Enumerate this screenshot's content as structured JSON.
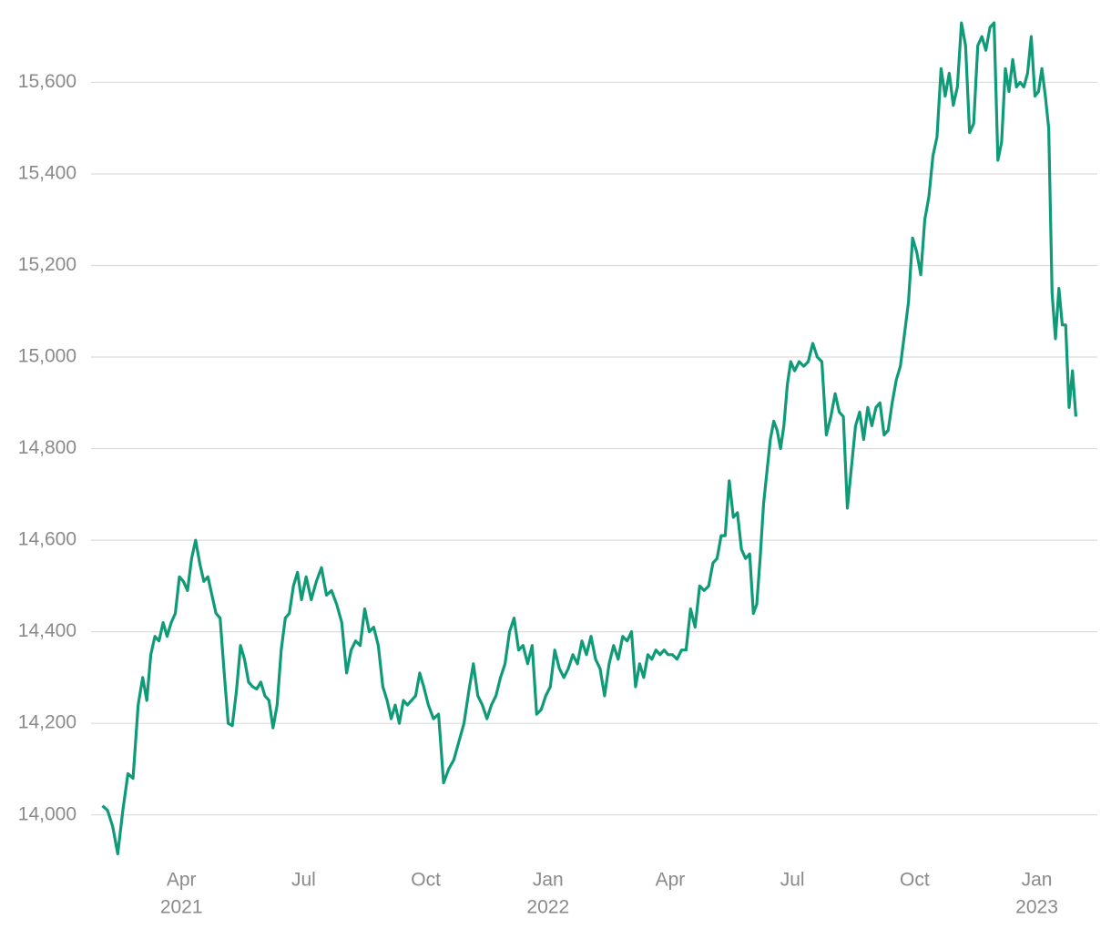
{
  "chart_data": {
    "type": "line",
    "x": [
      "2021-02",
      "2021-02",
      "2021-02",
      "2021-02",
      "2021-02",
      "2021-02",
      "2021-02",
      "2021-02",
      "2021-03",
      "2021-03",
      "2021-03",
      "2021-03",
      "2021-03",
      "2021-03",
      "2021-03",
      "2021-03",
      "2021-03",
      "2021-03",
      "2021-04",
      "2021-04",
      "2021-04",
      "2021-04",
      "2021-04",
      "2021-04",
      "2021-04",
      "2021-04",
      "2021-04",
      "2021-04",
      "2021-05",
      "2021-05",
      "2021-05",
      "2021-05",
      "2021-05",
      "2021-05",
      "2021-05",
      "2021-05",
      "2021-05",
      "2021-05",
      "2021-06",
      "2021-06",
      "2021-06",
      "2021-06",
      "2021-06",
      "2021-06",
      "2021-06",
      "2021-06",
      "2021-06",
      "2021-06",
      "2021-07",
      "2021-07",
      "2021-07",
      "2021-07",
      "2021-07",
      "2021-07",
      "2021-07",
      "2021-07",
      "2021-08",
      "2021-08",
      "2021-08",
      "2021-08",
      "2021-08",
      "2021-08",
      "2021-08",
      "2021-08",
      "2021-08",
      "2021-09",
      "2021-09",
      "2021-09",
      "2021-09",
      "2021-09",
      "2021-09",
      "2021-09",
      "2021-09",
      "2021-09",
      "2021-09",
      "2021-10",
      "2021-10",
      "2021-10",
      "2021-10",
      "2021-10",
      "2021-10",
      "2021-10",
      "2021-10",
      "2021-11",
      "2021-11",
      "2021-11",
      "2021-11",
      "2021-11",
      "2021-11",
      "2021-11",
      "2021-11",
      "2021-11",
      "2021-12",
      "2021-12",
      "2021-12",
      "2021-12",
      "2021-12",
      "2021-12",
      "2021-12",
      "2021-12",
      "2021-12",
      "2022-01",
      "2022-01",
      "2022-01",
      "2022-01",
      "2022-01",
      "2022-01",
      "2022-01",
      "2022-01",
      "2022-01",
      "2022-02",
      "2022-02",
      "2022-02",
      "2022-02",
      "2022-02",
      "2022-02",
      "2022-02",
      "2022-02",
      "2022-02",
      "2022-03",
      "2022-03",
      "2022-03",
      "2022-03",
      "2022-03",
      "2022-03",
      "2022-03",
      "2022-03",
      "2022-03",
      "2022-03",
      "2022-04",
      "2022-04",
      "2022-04",
      "2022-04",
      "2022-04",
      "2022-04",
      "2022-04",
      "2022-04",
      "2022-04",
      "2022-05",
      "2022-05",
      "2022-05",
      "2022-05",
      "2022-05",
      "2022-05",
      "2022-05",
      "2022-05",
      "2022-05",
      "2022-05",
      "2022-06",
      "2022-06",
      "2022-06",
      "2022-06",
      "2022-06",
      "2022-06",
      "2022-06",
      "2022-06",
      "2022-06",
      "2022-06",
      "2022-06",
      "2022-06",
      "2022-07",
      "2022-07",
      "2022-07",
      "2022-07",
      "2022-07",
      "2022-07",
      "2022-07",
      "2022-07",
      "2022-07",
      "2022-08",
      "2022-08",
      "2022-08",
      "2022-08",
      "2022-08",
      "2022-08",
      "2022-08",
      "2022-08",
      "2022-08",
      "2022-08",
      "2022-09",
      "2022-09",
      "2022-09",
      "2022-09",
      "2022-09",
      "2022-09",
      "2022-09",
      "2022-09",
      "2022-09",
      "2022-09",
      "2022-10",
      "2022-10",
      "2022-10",
      "2022-10",
      "2022-10",
      "2022-10",
      "2022-10",
      "2022-10",
      "2022-10",
      "2022-10",
      "2022-11",
      "2022-11",
      "2022-11",
      "2022-11",
      "2022-11",
      "2022-11",
      "2022-11",
      "2022-11",
      "2022-11",
      "2022-11",
      "2022-12",
      "2022-12",
      "2022-12",
      "2022-12",
      "2022-12",
      "2022-12",
      "2022-12",
      "2022-12",
      "2022-12",
      "2022-12",
      "2022-12",
      "2023-01",
      "2023-01",
      "2023-01",
      "2023-01",
      "2023-01",
      "2023-01",
      "2023-01",
      "2023-01",
      "2023-01",
      "2023-01",
      "2023-01",
      "2023-01"
    ],
    "series": [
      {
        "color": "#0f9a78",
        "values": [
          14020,
          14010,
          13975,
          13915,
          14010,
          14090,
          14080,
          14240,
          14300,
          14250,
          14350,
          14390,
          14380,
          14420,
          14390,
          14420,
          14440,
          14520,
          14510,
          14490,
          14560,
          14600,
          14550,
          14510,
          14520,
          14480,
          14440,
          14430,
          14310,
          14200,
          14195,
          14270,
          14370,
          14340,
          14290,
          14280,
          14275,
          14290,
          14260,
          14250,
          14190,
          14240,
          14360,
          14430,
          14440,
          14500,
          14530,
          14470,
          14520,
          14470,
          14510,
          14540,
          14480,
          14490,
          14460,
          14420,
          14310,
          14360,
          14380,
          14370,
          14450,
          14400,
          14410,
          14370,
          14280,
          14250,
          14210,
          14240,
          14200,
          14250,
          14240,
          14250,
          14260,
          14310,
          14280,
          14240,
          14210,
          14220,
          14070,
          14100,
          14120,
          14160,
          14200,
          14270,
          14330,
          14260,
          14240,
          14210,
          14240,
          14260,
          14300,
          14330,
          14400,
          14430,
          14360,
          14370,
          14330,
          14370,
          14220,
          14230,
          14260,
          14280,
          14360,
          14320,
          14300,
          14320,
          14350,
          14330,
          14380,
          14350,
          14390,
          14340,
          14320,
          14260,
          14330,
          14370,
          14340,
          14390,
          14380,
          14400,
          14280,
          14330,
          14300,
          14350,
          14340,
          14360,
          14350,
          14360,
          14350,
          14350,
          14340,
          14360,
          14360,
          14450,
          14410,
          14500,
          14490,
          14500,
          14550,
          14560,
          14610,
          14610,
          14730,
          14650,
          14660,
          14580,
          14560,
          14570,
          14440,
          14460,
          14560,
          14680,
          14750,
          14820,
          14860,
          14840,
          14800,
          14850,
          14940,
          14990,
          14970,
          14990,
          14980,
          14990,
          15030,
          15000,
          14990,
          14830,
          14870,
          14920,
          14880,
          14870,
          14670,
          14760,
          14850,
          14880,
          14820,
          14890,
          14850,
          14890,
          14900,
          14830,
          14840,
          14900,
          14950,
          14980,
          15050,
          15120,
          15260,
          15230,
          15180,
          15300,
          15350,
          15440,
          15480,
          15630,
          15570,
          15620,
          15550,
          15590,
          15730,
          15680,
          15490,
          15510,
          15680,
          15700,
          15670,
          15720,
          15730,
          15430,
          15470,
          15630,
          15580,
          15650,
          15590,
          15600,
          15590,
          15620,
          15700,
          15570,
          15580,
          15630,
          15570,
          15500,
          15140,
          15040,
          15150,
          15070,
          15070,
          14890,
          14970,
          14870
        ]
      }
    ],
    "xlim": [
      "2021-01",
      "2023-03"
    ],
    "xticks": [
      {
        "value": "2021-04",
        "label": "Apr",
        "year": "2021"
      },
      {
        "value": "2021-07",
        "label": "Jul"
      },
      {
        "value": "2021-10",
        "label": "Oct"
      },
      {
        "value": "2022-01",
        "label": "Jan",
        "year": "2022"
      },
      {
        "value": "2022-04",
        "label": "Apr"
      },
      {
        "value": "2022-07",
        "label": "Jul"
      },
      {
        "value": "2022-10",
        "label": "Oct"
      },
      {
        "value": "2023-01",
        "label": "Jan",
        "year": "2023"
      }
    ],
    "ylim": [
      13890,
      15760
    ],
    "yticks": [
      {
        "value": 14000,
        "label": "14,000"
      },
      {
        "value": 14200,
        "label": "14,200"
      },
      {
        "value": 14400,
        "label": "14,400"
      },
      {
        "value": 14600,
        "label": "14,600"
      },
      {
        "value": 14800,
        "label": "14,800"
      },
      {
        "value": 15000,
        "label": "15,000"
      },
      {
        "value": 15200,
        "label": "15,200"
      },
      {
        "value": 15400,
        "label": "15,400"
      },
      {
        "value": 15600,
        "label": "15,600"
      }
    ],
    "grid": true
  }
}
